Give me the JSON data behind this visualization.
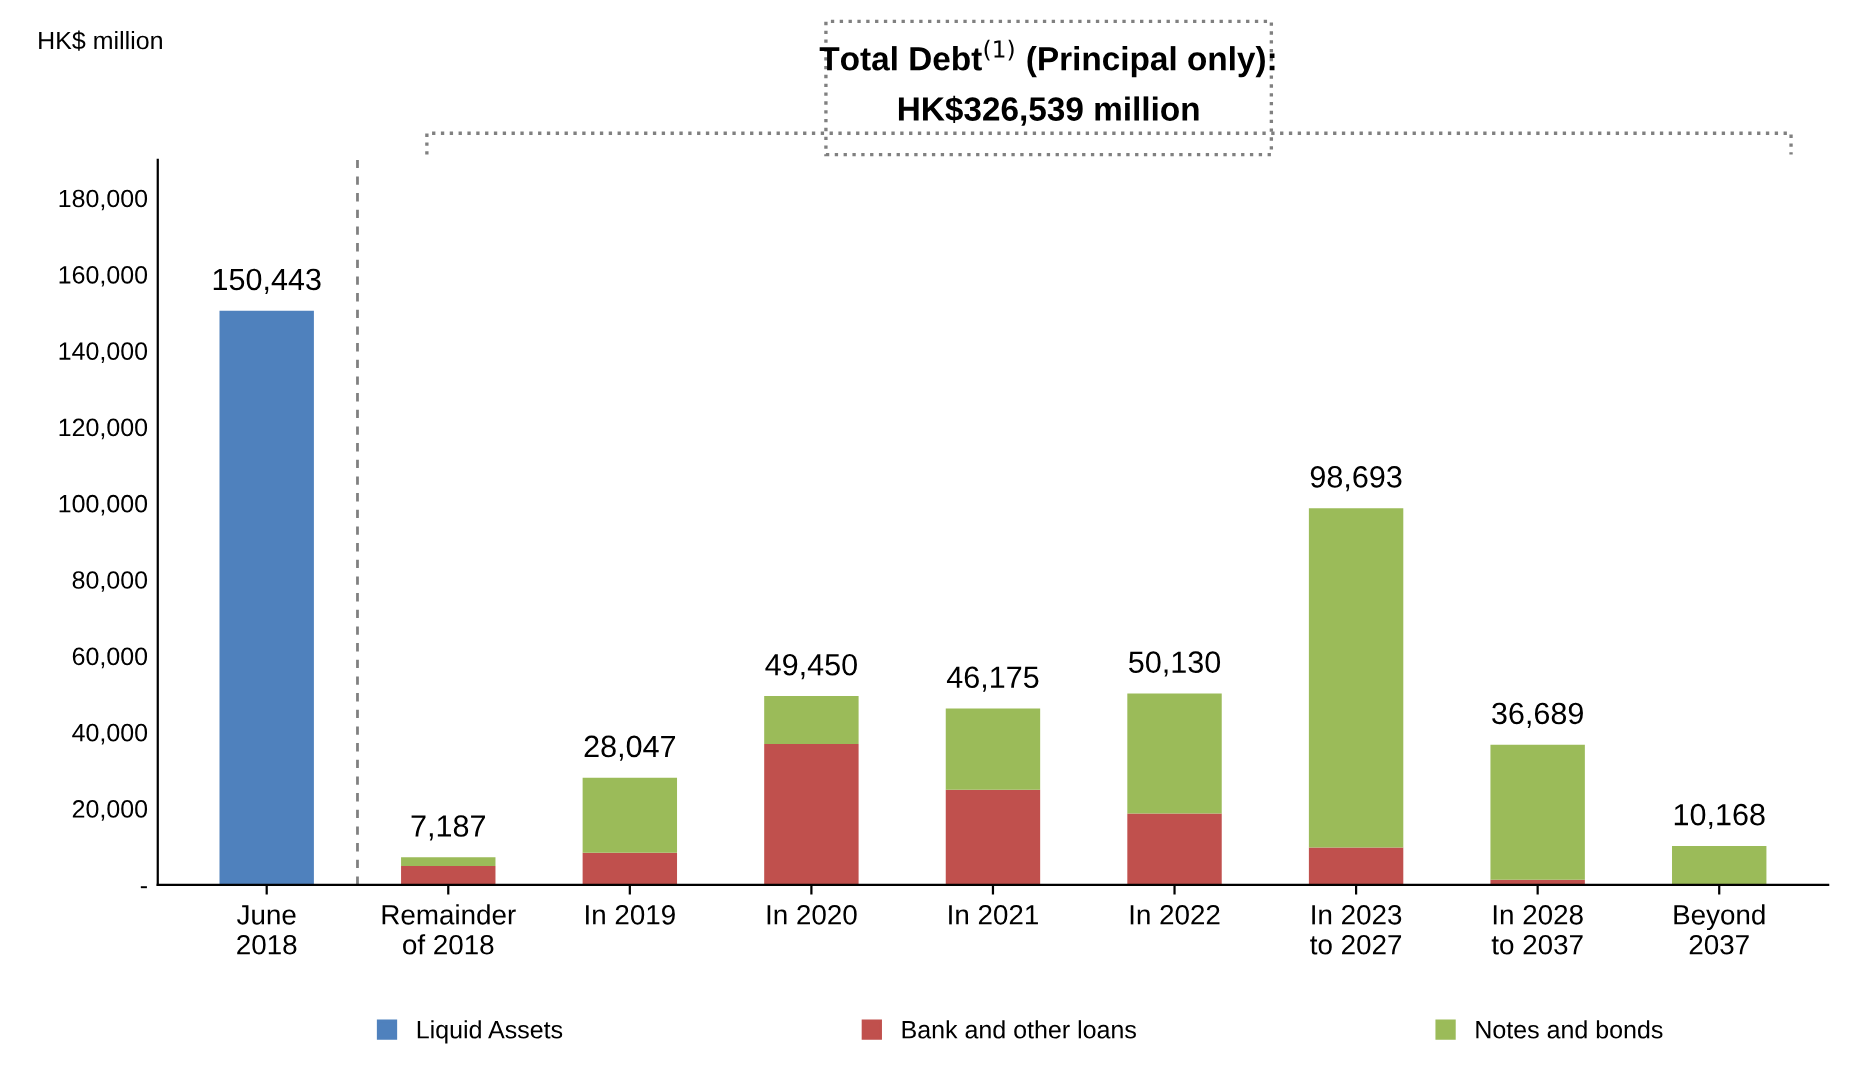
{
  "chart_data": {
    "type": "bar",
    "stacked": true,
    "ylabel": "HK$ million",
    "categories": [
      "June\n2018",
      "Remainder\nof 2018",
      "In 2019",
      "In 2020",
      "In 2021",
      "In 2022",
      "In 2023\nto 2027",
      "In 2028\nto 2037",
      "Beyond\n2037"
    ],
    "series": [
      {
        "name": "Liquid Assets",
        "color": "#4f81bd",
        "values": [
          150443,
          null,
          null,
          null,
          null,
          null,
          null,
          null,
          null
        ]
      },
      {
        "name": "Bank and other loans",
        "color": "#c0504d",
        "values": [
          null,
          4900,
          8400,
          36900,
          24900,
          18700,
          9800,
          1300,
          null
        ]
      },
      {
        "name": "Notes and bonds",
        "color": "#9bbb59",
        "values": [
          null,
          2287,
          19647,
          12550,
          21275,
          31430,
          88893,
          35389,
          10168
        ]
      }
    ],
    "totals": [
      "150,443",
      "7,187",
      "28,047",
      "49,450",
      "46,175",
      "50,130",
      "98,693",
      "36,689",
      "10,168"
    ],
    "ylim": [
      0,
      190000
    ],
    "yticks": [
      {
        "value": 0,
        "label": "-"
      },
      {
        "value": 20000,
        "label": "20,000"
      },
      {
        "value": 40000,
        "label": "40,000"
      },
      {
        "value": 60000,
        "label": "60,000"
      },
      {
        "value": 80000,
        "label": "80,000"
      },
      {
        "value": 100000,
        "label": "100,000"
      },
      {
        "value": 120000,
        "label": "120,000"
      },
      {
        "value": 140000,
        "label": "140,000"
      },
      {
        "value": 160000,
        "label": "160,000"
      },
      {
        "value": 180000,
        "label": "180,000"
      }
    ],
    "grid": false,
    "legend": "bottom",
    "annotations": [
      "Total Debt$^{(1)}$ (Principal only):",
      "HK$326,539 million"
    ]
  }
}
